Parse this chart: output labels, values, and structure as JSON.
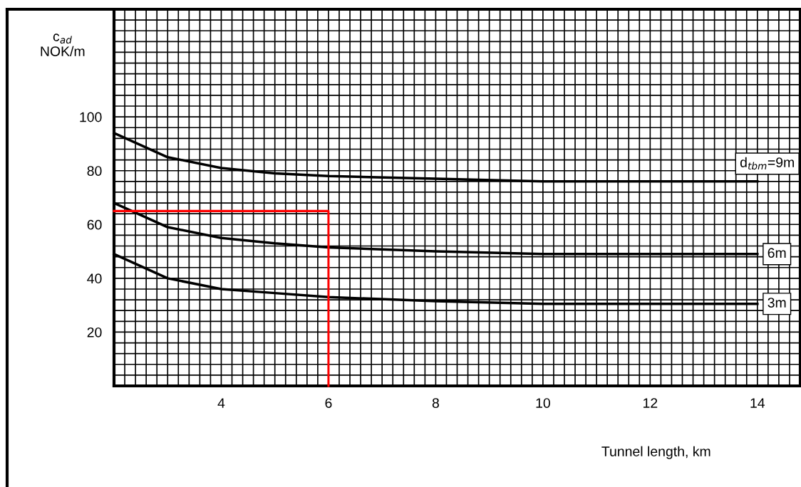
{
  "chart_data": {
    "type": "line",
    "xlabel": "Tunnel length, km",
    "ylabel": "c$_{ad}$\nNOK/m",
    "series": [
      {
        "name": "d$_{tbm}$=9m",
        "color": "#000000",
        "x": [
          2,
          3,
          4,
          5,
          6,
          8,
          10,
          12,
          14
        ],
        "values": [
          94,
          85,
          81,
          79,
          78,
          77,
          76,
          76,
          76
        ]
      },
      {
        "name": "6m",
        "color": "#000000",
        "x": [
          2,
          3,
          4,
          5,
          6,
          8,
          10,
          12,
          14
        ],
        "values": [
          68,
          59,
          55,
          53,
          51.5,
          50,
          49,
          49,
          49
        ]
      },
      {
        "name": "3m",
        "color": "#000000",
        "x": [
          2,
          3,
          4,
          5,
          6,
          8,
          10,
          12,
          14
        ],
        "values": [
          49,
          40,
          36,
          34.5,
          33,
          31.5,
          30.5,
          30.5,
          30.5
        ]
      },
      {
        "color": "#ff0000",
        "x": [
          2,
          6,
          6
        ],
        "values": [
          65,
          65,
          0
        ]
      }
    ],
    "xlim": [
      2,
      14.8
    ],
    "ylim": [
      0,
      140
    ],
    "xticks": [
      {
        "value": 2.2,
        "label": null
      },
      {
        "value": 2.4,
        "label": null
      },
      {
        "value": 2.6,
        "label": null
      },
      {
        "value": 2.8,
        "label": null
      },
      {
        "value": 3,
        "label": null
      },
      {
        "value": 3.2,
        "label": null
      },
      {
        "value": 3.4,
        "label": null
      },
      {
        "value": 3.6,
        "label": null
      },
      {
        "value": 3.8,
        "label": null
      },
      4,
      {
        "value": 4.2,
        "label": null
      },
      {
        "value": 4.4,
        "label": null
      },
      {
        "value": 4.6,
        "label": null
      },
      {
        "value": 4.8,
        "label": null
      },
      {
        "value": 5,
        "label": null
      },
      {
        "value": 5.2,
        "label": null
      },
      {
        "value": 5.4,
        "label": null
      },
      {
        "value": 5.6,
        "label": null
      },
      {
        "value": 5.8,
        "label": null
      },
      6,
      {
        "value": 6.2,
        "label": null
      },
      {
        "value": 6.4,
        "label": null
      },
      {
        "value": 6.6,
        "label": null
      },
      {
        "value": 6.8,
        "label": null
      },
      {
        "value": 7,
        "label": null
      },
      {
        "value": 7.2,
        "label": null
      },
      {
        "value": 7.4,
        "label": null
      },
      {
        "value": 7.6,
        "label": null
      },
      {
        "value": 7.8,
        "label": null
      },
      8,
      {
        "value": 8.2,
        "label": null
      },
      {
        "value": 8.4,
        "label": null
      },
      {
        "value": 8.6,
        "label": null
      },
      {
        "value": 8.8,
        "label": null
      },
      {
        "value": 9,
        "label": null
      },
      {
        "value": 9.2,
        "label": null
      },
      {
        "value": 9.4,
        "label": null
      },
      {
        "value": 9.6,
        "label": null
      },
      {
        "value": 9.8,
        "label": null
      },
      10,
      {
        "value": 10.2,
        "label": null
      },
      {
        "value": 10.4,
        "label": null
      },
      {
        "value": 10.6,
        "label": null
      },
      {
        "value": 10.8,
        "label": null
      },
      {
        "value": 11,
        "label": null
      },
      {
        "value": 11.2,
        "label": null
      },
      {
        "value": 11.4,
        "label": null
      },
      {
        "value": 11.6,
        "label": null
      },
      {
        "value": 11.8,
        "label": null
      },
      12,
      {
        "value": 12.2,
        "label": null
      },
      {
        "value": 12.4,
        "label": null
      },
      {
        "value": 12.6,
        "label": null
      },
      {
        "value": 12.8,
        "label": null
      },
      {
        "value": 13,
        "label": null
      },
      {
        "value": 13.2,
        "label": null
      },
      {
        "value": 13.4,
        "label": null
      },
      {
        "value": 13.6,
        "label": null
      },
      {
        "value": 13.8,
        "label": null
      },
      14,
      {
        "value": 14.2,
        "label": null
      },
      {
        "value": 14.4,
        "label": null
      },
      {
        "value": 14.6,
        "label": null
      }
    ],
    "yticks": [
      {
        "value": 4,
        "label": null
      },
      {
        "value": 8,
        "label": null
      },
      {
        "value": 12,
        "label": null
      },
      {
        "value": 16,
        "label": null
      },
      20,
      {
        "value": 24,
        "label": null
      },
      {
        "value": 28,
        "label": null
      },
      {
        "value": 32,
        "label": null
      },
      {
        "value": 36,
        "label": null
      },
      40,
      {
        "value": 44,
        "label": null
      },
      {
        "value": 48,
        "label": null
      },
      {
        "value": 52,
        "label": null
      },
      {
        "value": 56,
        "label": null
      },
      60,
      {
        "value": 64,
        "label": null
      },
      {
        "value": 68,
        "label": null
      },
      {
        "value": 72,
        "label": null
      },
      {
        "value": 76,
        "label": null
      },
      80,
      {
        "value": 84,
        "label": null
      },
      {
        "value": 88,
        "label": null
      },
      {
        "value": 92,
        "label": null
      },
      {
        "value": 96,
        "label": null
      },
      100,
      {
        "value": 104,
        "label": null
      },
      {
        "value": 108,
        "label": null
      },
      {
        "value": 112,
        "label": null
      },
      {
        "value": 116,
        "label": null
      },
      {
        "value": 120,
        "label": null
      },
      {
        "value": 124,
        "label": null
      },
      {
        "value": 128,
        "label": null
      },
      {
        "value": 132,
        "label": null
      },
      {
        "value": 136,
        "label": null
      }
    ],
    "grid": true,
    "legend": false
  }
}
